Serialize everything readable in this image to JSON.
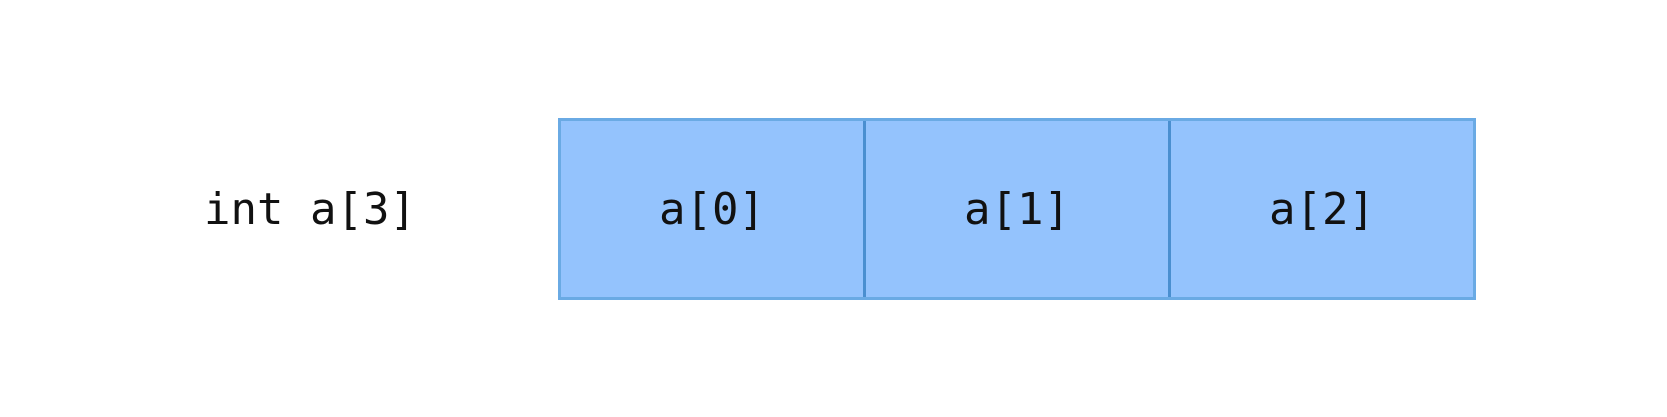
{
  "declaration": "int a[3]",
  "array": {
    "cells": [
      "a[0]",
      "a[1]",
      "a[2]"
    ]
  },
  "colors": {
    "cell_fill": "#94c3fd",
    "cell_border": "#6aaae4",
    "cell_divider": "#4a8fd0",
    "text": "#111111",
    "background": "#ffffff"
  }
}
